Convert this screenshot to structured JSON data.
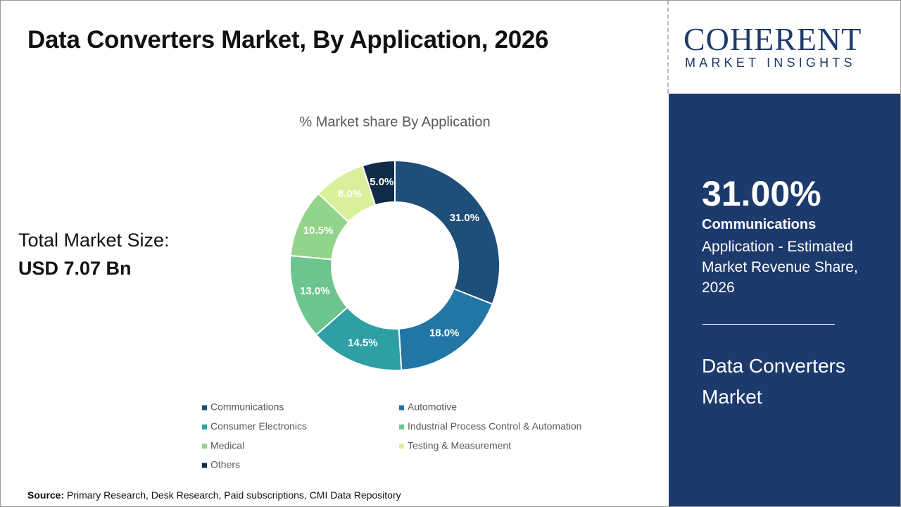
{
  "page": {
    "title": "Data Converters Market, By Application, 2026",
    "market_size_label": "Total Market Size:",
    "market_size_value": "USD 7.07 Bn",
    "logo": {
      "name": "COHERENT",
      "tagline": "MARKET INSIGHTS"
    },
    "highlight": {
      "share": "31.00%",
      "segment": "Communications",
      "description": "Application - Estimated Market Revenue Share, 2026",
      "market": "Data Converters Market"
    },
    "source": {
      "label": "Source:",
      "text": "Primary Research, Desk Research, Paid subscriptions, CMI Data Repository"
    }
  },
  "chart_data": {
    "type": "donut",
    "title": "% Market share By Application",
    "categories": [
      "Communications",
      "Automotive",
      "Consumer Electronics",
      "Industrial Process Control & Automation",
      "Medical",
      "Testing & Measurement",
      "Others"
    ],
    "values": [
      31.0,
      18.0,
      14.5,
      13.0,
      10.5,
      8.0,
      5.0
    ],
    "value_labels": [
      "31.0%",
      "18.0%",
      "14.5%",
      "13.0%",
      "10.5%",
      "8.0%",
      "5.0%"
    ],
    "colors": [
      "#1f4e79",
      "#2176a6",
      "#2f9fa6",
      "#6cc48f",
      "#92d58a",
      "#d9f09b",
      "#0f2b47"
    ],
    "legend": "bottom"
  }
}
